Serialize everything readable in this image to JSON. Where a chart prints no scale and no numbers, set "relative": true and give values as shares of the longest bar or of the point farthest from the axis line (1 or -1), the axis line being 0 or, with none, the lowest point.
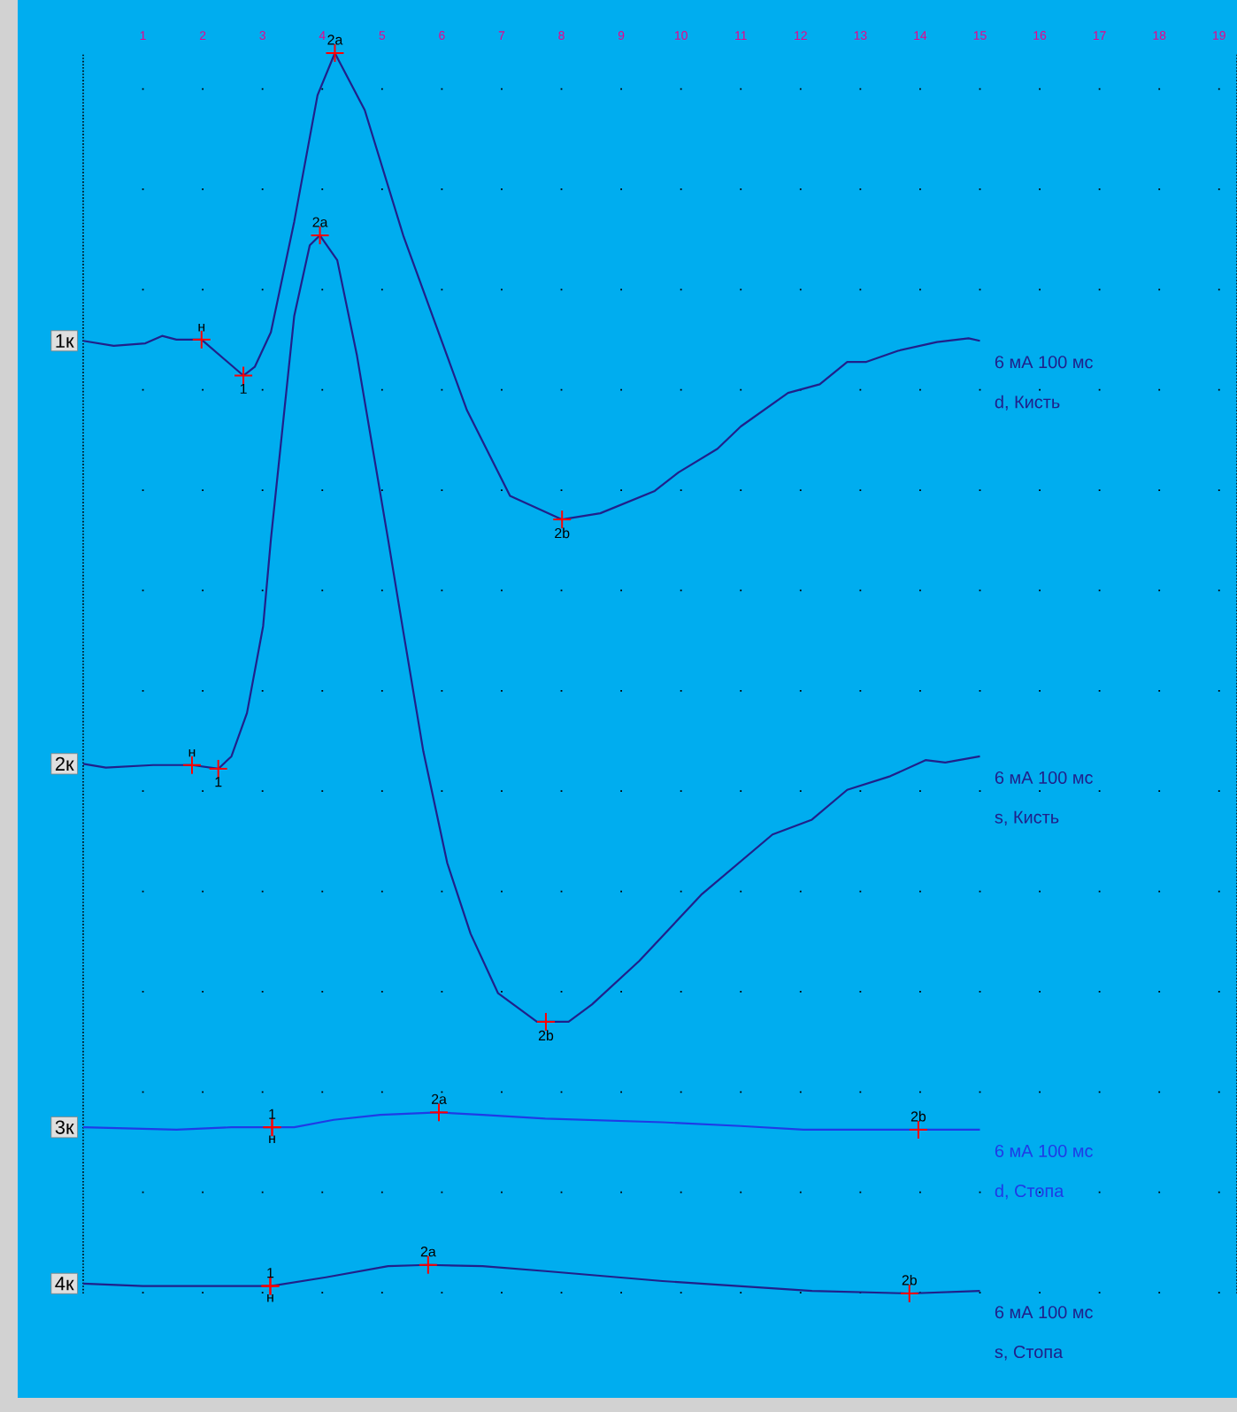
{
  "chart_data": {
    "type": "line",
    "relative": true,
    "grid": "x",
    "tick_labels": "x",
    "xlim": [
      0,
      19.3
    ],
    "xticks": [
      1,
      2,
      3,
      4,
      5,
      6,
      7,
      8,
      9,
      10,
      11,
      12,
      13,
      14,
      15,
      16,
      17,
      18,
      19
    ],
    "series": [
      {
        "name": "1к",
        "color": "#20208a",
        "x": [
          0,
          0.51,
          1.04,
          1.32,
          1.56,
          1.98,
          2.68,
          2.87,
          3.14,
          3.53,
          3.92,
          4.21,
          4.71,
          5.36,
          5.89,
          6.42,
          7.14,
          8.01,
          8.65,
          9.56,
          9.96,
          10.61,
          11.0,
          11.79,
          12.32,
          12.78,
          13.1,
          13.63,
          14.28,
          14.81,
          15.0
        ],
        "values": [
          0.768,
          0.764,
          0.766,
          0.772,
          0.769,
          0.769,
          0.74,
          0.747,
          0.775,
          0.864,
          0.966,
          1.0,
          0.954,
          0.852,
          0.782,
          0.712,
          0.643,
          0.624,
          0.629,
          0.647,
          0.662,
          0.681,
          0.699,
          0.726,
          0.733,
          0.751,
          0.751,
          0.76,
          0.767,
          0.77,
          0.768
        ]
      },
      {
        "name": "2к",
        "color": "#20208a",
        "x": [
          0,
          0.38,
          1.17,
          1.82,
          2.26,
          2.48,
          2.74,
          3.01,
          3.14,
          3.53,
          3.79,
          3.96,
          4.25,
          4.58,
          5.1,
          5.36,
          5.69,
          6.09,
          6.48,
          6.94,
          7.59,
          8.12,
          8.51,
          9.3,
          10.35,
          11.53,
          12.19,
          12.78,
          13.5,
          14.09,
          14.42,
          15.0
        ],
        "values": [
          0.427,
          0.424,
          0.426,
          0.426,
          0.423,
          0.433,
          0.468,
          0.538,
          0.608,
          0.788,
          0.845,
          0.853,
          0.833,
          0.756,
          0.608,
          0.532,
          0.437,
          0.347,
          0.29,
          0.242,
          0.219,
          0.219,
          0.233,
          0.268,
          0.322,
          0.37,
          0.382,
          0.406,
          0.417,
          0.43,
          0.428,
          0.433
        ]
      },
      {
        "name": "3к",
        "color": "#1f3be6",
        "x": [
          0,
          1.56,
          2.48,
          3.53,
          4.19,
          4.97,
          5.93,
          6.68,
          7.73,
          9.69,
          11.0,
          12.05,
          15.0
        ],
        "values": [
          0.134,
          0.132,
          0.134,
          0.134,
          0.14,
          0.144,
          0.146,
          0.144,
          0.141,
          0.138,
          0.135,
          0.132,
          0.132
        ]
      },
      {
        "name": "4к",
        "color": "#20208a",
        "x": [
          0,
          1.0,
          3.14,
          4.06,
          5.1,
          5.76,
          6.68,
          7.73,
          9.69,
          12.19,
          13.83,
          15.0
        ],
        "values": [
          0.008,
          0.006,
          0.006,
          0.013,
          0.022,
          0.023,
          0.022,
          0.018,
          0.01,
          0.002,
          0.0,
          0.002
        ]
      }
    ],
    "annotations": [
      "6 мА 100 мс",
      "d, Кисть",
      "6 мА 100 мс",
      "s, Кисть",
      "6 мА 100 мс",
      "d, Стопа",
      "6 мА 100 мс",
      "s, Стопа",
      {
        "text": "н",
        "x": 1.98,
        "y": 0.769
      },
      {
        "text": "1",
        "x": 2.68,
        "y": 0.74
      },
      {
        "text": "2a",
        "x": 4.21,
        "y": 1.0
      },
      {
        "text": "2b",
        "x": 8.01,
        "y": 0.624
      },
      {
        "text": "н",
        "x": 1.82,
        "y": 0.426
      },
      {
        "text": "1",
        "x": 2.26,
        "y": 0.423
      },
      {
        "text": "2a",
        "x": 3.96,
        "y": 0.853
      },
      {
        "text": "2b",
        "x": 7.74,
        "y": 0.219
      },
      {
        "text": "н",
        "x": 3.16,
        "y": 0.134
      },
      {
        "text": "1",
        "x": 3.16,
        "y": 0.134
      },
      {
        "text": "2a",
        "x": 5.95,
        "y": 0.146
      },
      {
        "text": "2b",
        "x": 13.97,
        "y": 0.132
      },
      {
        "text": "н",
        "x": 3.13,
        "y": 0.006
      },
      {
        "text": "1",
        "x": 3.13,
        "y": 0.006
      },
      {
        "text": "2a",
        "x": 5.77,
        "y": 0.023
      },
      {
        "text": "2b",
        "x": 13.82,
        "y": 0.0
      }
    ]
  }
}
